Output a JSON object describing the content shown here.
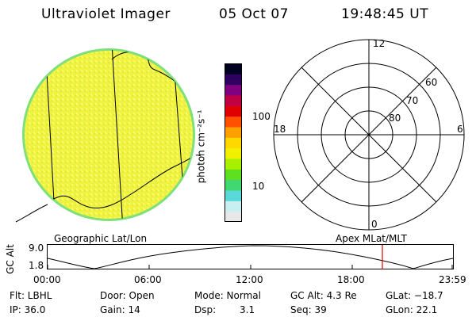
{
  "header": {
    "title": "Ultraviolet Imager",
    "date": "05 Oct 07",
    "time": "19:48:45 UT"
  },
  "colorbar": {
    "label": "photon cm⁻²s⁻¹",
    "tick_100": "100",
    "tick_10": "10",
    "colors": [
      "#e8e8e8",
      "#c8f0f0",
      "#5ad8d8",
      "#40d870",
      "#5ee020",
      "#a8f000",
      "#f0f000",
      "#ffd800",
      "#ffa000",
      "#ff5000",
      "#e00000",
      "#c00040",
      "#800080",
      "#300060",
      "#000020"
    ]
  },
  "polar": {
    "mlt_top": "12",
    "mlt_left": "18",
    "mlt_right": "6",
    "mlt_bottom": "0",
    "lat_60": "60",
    "lat_70": "70",
    "lat_80": "80"
  },
  "timeline": {
    "left_label": "Geographic Lat/Lon",
    "right_label": "Apex MLat/MLT",
    "y_axis_label": "GC Alt",
    "y_top": "9.0",
    "y_bottom": "1.8",
    "x_ticks": [
      "00:00",
      "06:00",
      "12:00",
      "18:00",
      "23:59"
    ],
    "cursor_color": "#e00000"
  },
  "info": {
    "flt": "Flt: LBHL",
    "ip": "IP: 36.0",
    "door": "Door: Open",
    "gain": "Gain: 14",
    "mode": "Mode: Normal",
    "dsp_label": "Dsp:",
    "dsp_value": "3.1",
    "gc_alt": "GC Alt: 4.3 Re",
    "seq": "Seq: 39",
    "glat": "GLat: −18.7",
    "glon": "GLon:  22.1"
  }
}
